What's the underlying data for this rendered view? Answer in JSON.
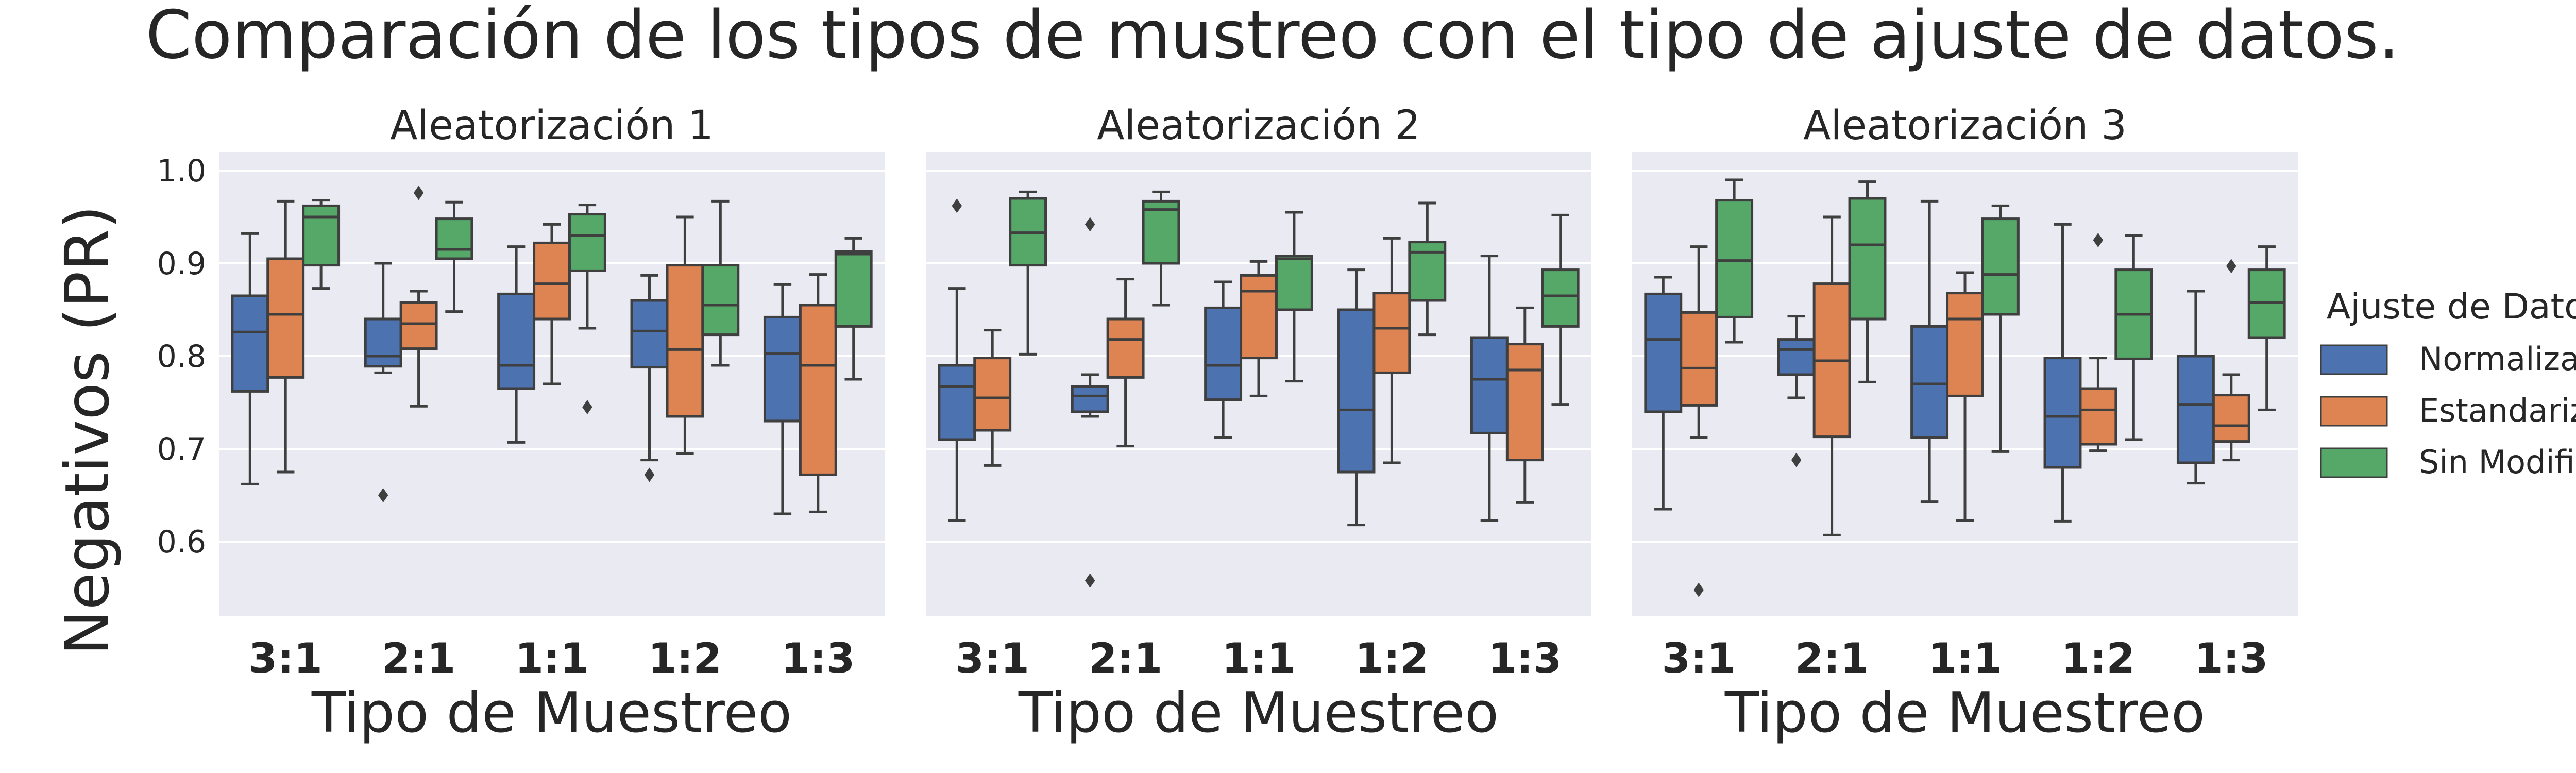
{
  "chart_data": {
    "type": "box",
    "title": "Comparación de los tipos de mustreo con el tipo de ajuste de datos.",
    "ylabel": "Negativos (PR)",
    "xlabel": "Tipo de Muestreo",
    "ylim": [
      0.52,
      1.02
    ],
    "yticks": [
      0.6,
      0.7,
      0.8,
      0.9,
      1.0
    ],
    "ytick_labels": [
      "0.6",
      "0.7",
      "0.8",
      "0.9",
      "1.0"
    ],
    "categories": [
      "3:1",
      "2:1",
      "1:1",
      "1:2",
      "1:3"
    ],
    "grid": true,
    "legend": {
      "title": "Ajuste de Datos",
      "placement": "right",
      "entries": [
        "Normalizados",
        "Estandarizados",
        "Sin Modificación"
      ]
    },
    "colors": {
      "Normalizados": "#4c72b0",
      "Estandarizados": "#dd8452",
      "Sin Modificación": "#55a868",
      "background": "#eaeaf2",
      "grid": "#ffffff",
      "lines": "#3f3f3f"
    },
    "panels": [
      {
        "title": "Aleatorización 1",
        "series": [
          {
            "name": "Normalizados",
            "boxes": [
              {
                "category": "3:1",
                "whislo": 0.662,
                "q1": 0.762,
                "med": 0.826,
                "q3": 0.865,
                "whishi": 0.932,
                "fliers": []
              },
              {
                "category": "2:1",
                "whislo": 0.782,
                "q1": 0.789,
                "med": 0.8,
                "q3": 0.84,
                "whishi": 0.9,
                "fliers": [
                  0.65
                ]
              },
              {
                "category": "1:1",
                "whislo": 0.707,
                "q1": 0.765,
                "med": 0.79,
                "q3": 0.867,
                "whishi": 0.918,
                "fliers": []
              },
              {
                "category": "1:2",
                "whislo": 0.688,
                "q1": 0.788,
                "med": 0.827,
                "q3": 0.86,
                "whishi": 0.887,
                "fliers": [
                  0.672
                ]
              },
              {
                "category": "1:3",
                "whislo": 0.63,
                "q1": 0.73,
                "med": 0.803,
                "q3": 0.842,
                "whishi": 0.877,
                "fliers": []
              }
            ]
          },
          {
            "name": "Estandarizados",
            "boxes": [
              {
                "category": "3:1",
                "whislo": 0.675,
                "q1": 0.777,
                "med": 0.845,
                "q3": 0.905,
                "whishi": 0.967,
                "fliers": []
              },
              {
                "category": "2:1",
                "whislo": 0.746,
                "q1": 0.808,
                "med": 0.835,
                "q3": 0.858,
                "whishi": 0.87,
                "fliers": [
                  0.976
                ]
              },
              {
                "category": "1:1",
                "whislo": 0.77,
                "q1": 0.84,
                "med": 0.878,
                "q3": 0.922,
                "whishi": 0.942,
                "fliers": []
              },
              {
                "category": "1:2",
                "whislo": 0.695,
                "q1": 0.735,
                "med": 0.807,
                "q3": 0.898,
                "whishi": 0.95,
                "fliers": []
              },
              {
                "category": "1:3",
                "whislo": 0.632,
                "q1": 0.672,
                "med": 0.79,
                "q3": 0.855,
                "whishi": 0.888,
                "fliers": []
              }
            ]
          },
          {
            "name": "Sin Modificación",
            "boxes": [
              {
                "category": "3:1",
                "whislo": 0.873,
                "q1": 0.898,
                "med": 0.95,
                "q3": 0.962,
                "whishi": 0.968,
                "fliers": []
              },
              {
                "category": "2:1",
                "whislo": 0.848,
                "q1": 0.905,
                "med": 0.915,
                "q3": 0.948,
                "whishi": 0.966,
                "fliers": []
              },
              {
                "category": "1:1",
                "whislo": 0.83,
                "q1": 0.892,
                "med": 0.93,
                "q3": 0.953,
                "whishi": 0.963,
                "fliers": [
                  0.745
                ]
              },
              {
                "category": "1:2",
                "whislo": 0.79,
                "q1": 0.823,
                "med": 0.855,
                "q3": 0.898,
                "whishi": 0.967,
                "fliers": []
              },
              {
                "category": "1:3",
                "whislo": 0.775,
                "q1": 0.832,
                "med": 0.91,
                "q3": 0.913,
                "whishi": 0.927,
                "fliers": []
              }
            ]
          }
        ]
      },
      {
        "title": "Aleatorización 2",
        "series": [
          {
            "name": "Normalizados",
            "boxes": [
              {
                "category": "3:1",
                "whislo": 0.623,
                "q1": 0.71,
                "med": 0.767,
                "q3": 0.79,
                "whishi": 0.873,
                "fliers": [
                  0.962
                ]
              },
              {
                "category": "2:1",
                "whislo": 0.735,
                "q1": 0.74,
                "med": 0.757,
                "q3": 0.767,
                "whishi": 0.78,
                "fliers": [
                  0.942,
                  0.558
                ]
              },
              {
                "category": "1:1",
                "whislo": 0.712,
                "q1": 0.753,
                "med": 0.79,
                "q3": 0.852,
                "whishi": 0.88,
                "fliers": []
              },
              {
                "category": "1:2",
                "whislo": 0.618,
                "q1": 0.675,
                "med": 0.742,
                "q3": 0.85,
                "whishi": 0.893,
                "fliers": []
              },
              {
                "category": "1:3",
                "whislo": 0.623,
                "q1": 0.717,
                "med": 0.775,
                "q3": 0.82,
                "whishi": 0.908,
                "fliers": []
              }
            ]
          },
          {
            "name": "Estandarizados",
            "boxes": [
              {
                "category": "3:1",
                "whislo": 0.682,
                "q1": 0.72,
                "med": 0.755,
                "q3": 0.798,
                "whishi": 0.828,
                "fliers": []
              },
              {
                "category": "2:1",
                "whislo": 0.703,
                "q1": 0.777,
                "med": 0.818,
                "q3": 0.84,
                "whishi": 0.883,
                "fliers": []
              },
              {
                "category": "1:1",
                "whislo": 0.757,
                "q1": 0.798,
                "med": 0.87,
                "q3": 0.887,
                "whishi": 0.902,
                "fliers": []
              },
              {
                "category": "1:2",
                "whislo": 0.685,
                "q1": 0.782,
                "med": 0.83,
                "q3": 0.868,
                "whishi": 0.927,
                "fliers": []
              },
              {
                "category": "1:3",
                "whislo": 0.642,
                "q1": 0.688,
                "med": 0.785,
                "q3": 0.813,
                "whishi": 0.852,
                "fliers": []
              }
            ]
          },
          {
            "name": "Sin Modificación",
            "boxes": [
              {
                "category": "3:1",
                "whislo": 0.802,
                "q1": 0.898,
                "med": 0.933,
                "q3": 0.97,
                "whishi": 0.977,
                "fliers": []
              },
              {
                "category": "2:1",
                "whislo": 0.855,
                "q1": 0.9,
                "med": 0.958,
                "q3": 0.967,
                "whishi": 0.977,
                "fliers": []
              },
              {
                "category": "1:1",
                "whislo": 0.773,
                "q1": 0.85,
                "med": 0.905,
                "q3": 0.908,
                "whishi": 0.955,
                "fliers": []
              },
              {
                "category": "1:2",
                "whislo": 0.823,
                "q1": 0.86,
                "med": 0.912,
                "q3": 0.923,
                "whishi": 0.965,
                "fliers": []
              },
              {
                "category": "1:3",
                "whislo": 0.748,
                "q1": 0.832,
                "med": 0.865,
                "q3": 0.893,
                "whishi": 0.952,
                "fliers": []
              }
            ]
          }
        ]
      },
      {
        "title": "Aleatorización 3",
        "series": [
          {
            "name": "Normalizados",
            "boxes": [
              {
                "category": "3:1",
                "whislo": 0.635,
                "q1": 0.74,
                "med": 0.818,
                "q3": 0.867,
                "whishi": 0.885,
                "fliers": []
              },
              {
                "category": "2:1",
                "whislo": 0.755,
                "q1": 0.78,
                "med": 0.807,
                "q3": 0.818,
                "whishi": 0.843,
                "fliers": [
                  0.688
                ]
              },
              {
                "category": "1:1",
                "whislo": 0.643,
                "q1": 0.712,
                "med": 0.77,
                "q3": 0.832,
                "whishi": 0.967,
                "fliers": []
              },
              {
                "category": "1:2",
                "whislo": 0.622,
                "q1": 0.68,
                "med": 0.735,
                "q3": 0.798,
                "whishi": 0.942,
                "fliers": []
              },
              {
                "category": "1:3",
                "whislo": 0.663,
                "q1": 0.685,
                "med": 0.748,
                "q3": 0.8,
                "whishi": 0.87,
                "fliers": []
              }
            ]
          },
          {
            "name": "Estandarizados",
            "boxes": [
              {
                "category": "3:1",
                "whislo": 0.712,
                "q1": 0.747,
                "med": 0.787,
                "q3": 0.847,
                "whishi": 0.918,
                "fliers": [
                  0.548
                ]
              },
              {
                "category": "2:1",
                "whislo": 0.607,
                "q1": 0.713,
                "med": 0.795,
                "q3": 0.878,
                "whishi": 0.95,
                "fliers": []
              },
              {
                "category": "1:1",
                "whislo": 0.623,
                "q1": 0.757,
                "med": 0.84,
                "q3": 0.868,
                "whishi": 0.89,
                "fliers": []
              },
              {
                "category": "1:2",
                "whislo": 0.698,
                "q1": 0.705,
                "med": 0.742,
                "q3": 0.765,
                "whishi": 0.798,
                "fliers": [
                  0.925
                ]
              },
              {
                "category": "1:3",
                "whislo": 0.688,
                "q1": 0.708,
                "med": 0.725,
                "q3": 0.758,
                "whishi": 0.78,
                "fliers": [
                  0.897
                ]
              }
            ]
          },
          {
            "name": "Sin Modificación",
            "boxes": [
              {
                "category": "3:1",
                "whislo": 0.815,
                "q1": 0.842,
                "med": 0.903,
                "q3": 0.968,
                "whishi": 0.99,
                "fliers": []
              },
              {
                "category": "2:1",
                "whislo": 0.772,
                "q1": 0.84,
                "med": 0.92,
                "q3": 0.97,
                "whishi": 0.988,
                "fliers": []
              },
              {
                "category": "1:1",
                "whislo": 0.697,
                "q1": 0.845,
                "med": 0.888,
                "q3": 0.948,
                "whishi": 0.962,
                "fliers": []
              },
              {
                "category": "1:2",
                "whislo": 0.71,
                "q1": 0.797,
                "med": 0.845,
                "q3": 0.893,
                "whishi": 0.93,
                "fliers": []
              },
              {
                "category": "1:3",
                "whislo": 0.742,
                "q1": 0.82,
                "med": 0.858,
                "q3": 0.893,
                "whishi": 0.918,
                "fliers": []
              }
            ]
          }
        ]
      }
    ]
  }
}
